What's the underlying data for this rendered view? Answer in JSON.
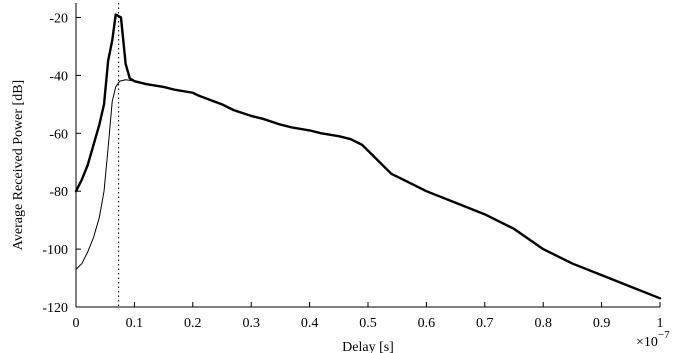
{
  "chart_data": {
    "type": "line",
    "title": "",
    "xlabel": "Delay [s]",
    "ylabel": "Average Received Power [dB]",
    "x_multiplier_label": "×10",
    "x_multiplier_exponent": "−7",
    "xlim": [
      0,
      1
    ],
    "ylim": [
      -120,
      -15
    ],
    "xticks": [
      0,
      0.1,
      0.2,
      0.3,
      0.4,
      0.5,
      0.6,
      0.7,
      0.8,
      0.9,
      1
    ],
    "xtick_labels": [
      "0",
      "0.1",
      "0.2",
      "0.3",
      "0.4",
      "0.5",
      "0.6",
      "0.7",
      "0.8",
      "0.9",
      "1"
    ],
    "yticks": [
      -120,
      -100,
      -80,
      -60,
      -40,
      -20
    ],
    "ytick_labels": [
      "-120",
      "-100",
      "-80",
      "-60",
      "-40",
      "-20"
    ],
    "grid": false,
    "legend": "none",
    "vline": {
      "x": 0.073,
      "style": "dotted"
    },
    "series": [
      {
        "style": "thick",
        "points": [
          [
            0,
            -80
          ],
          [
            0.01,
            -76
          ],
          [
            0.02,
            -71
          ],
          [
            0.03,
            -64
          ],
          [
            0.04,
            -57
          ],
          [
            0.048,
            -50
          ],
          [
            0.055,
            -35
          ],
          [
            0.062,
            -28
          ],
          [
            0.068,
            -19
          ],
          [
            0.077,
            -20
          ],
          [
            0.085,
            -36
          ],
          [
            0.092,
            -41
          ],
          [
            0.1,
            -42
          ],
          [
            0.12,
            -43
          ],
          [
            0.15,
            -44
          ],
          [
            0.17,
            -45
          ],
          [
            0.2,
            -46
          ],
          [
            0.21,
            -47
          ],
          [
            0.23,
            -48.5
          ],
          [
            0.25,
            -50
          ],
          [
            0.27,
            -52
          ],
          [
            0.3,
            -54
          ],
          [
            0.32,
            -55
          ],
          [
            0.35,
            -57
          ],
          [
            0.37,
            -58
          ],
          [
            0.4,
            -59
          ],
          [
            0.42,
            -60
          ],
          [
            0.45,
            -61
          ],
          [
            0.47,
            -62
          ],
          [
            0.49,
            -64
          ],
          [
            0.5,
            -66
          ],
          [
            0.52,
            -70
          ],
          [
            0.54,
            -74
          ],
          [
            0.56,
            -76
          ],
          [
            0.6,
            -80
          ],
          [
            0.65,
            -84
          ],
          [
            0.7,
            -88
          ],
          [
            0.75,
            -93
          ],
          [
            0.8,
            -100
          ],
          [
            0.85,
            -105
          ],
          [
            0.9,
            -109
          ],
          [
            0.95,
            -113
          ],
          [
            1.0,
            -117
          ]
        ]
      },
      {
        "style": "thin",
        "points": [
          [
            0,
            -107
          ],
          [
            0.01,
            -105
          ],
          [
            0.02,
            -101
          ],
          [
            0.03,
            -96
          ],
          [
            0.04,
            -89
          ],
          [
            0.048,
            -80
          ],
          [
            0.055,
            -65
          ],
          [
            0.062,
            -49
          ],
          [
            0.068,
            -44
          ],
          [
            0.075,
            -42
          ],
          [
            0.085,
            -41.5
          ],
          [
            0.095,
            -41.8
          ],
          [
            0.1,
            -42
          ]
        ]
      }
    ]
  }
}
